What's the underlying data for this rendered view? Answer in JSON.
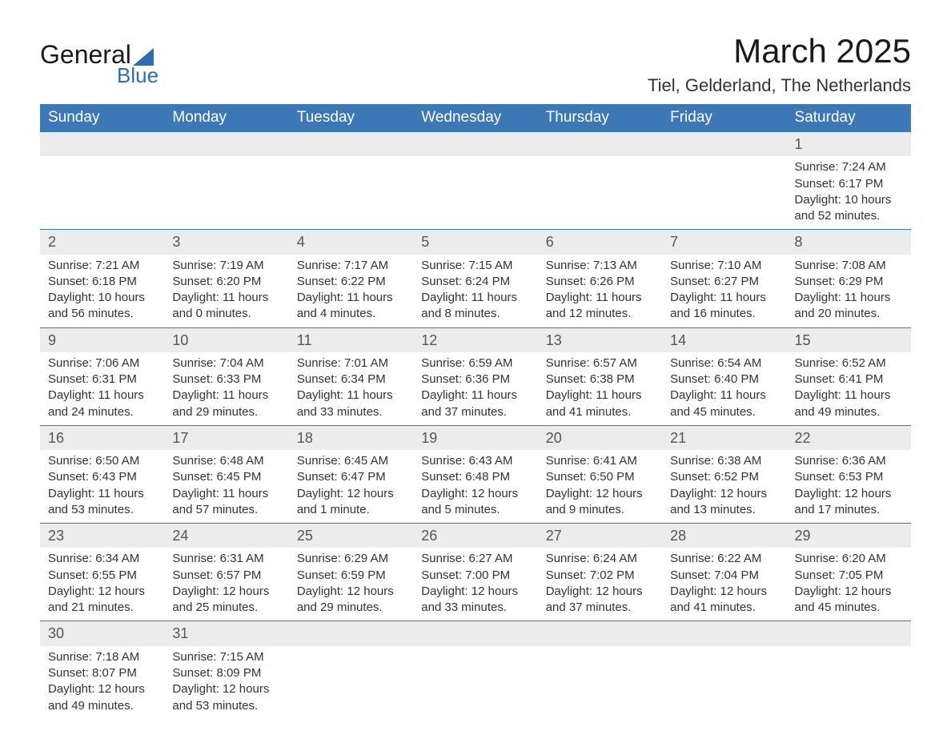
{
  "logo": {
    "main": "General",
    "sub": "Blue"
  },
  "title": "March 2025",
  "location": "Tiel, Gelderland, The Netherlands",
  "colors": {
    "header_bg": "#3b78b5",
    "header_text": "#ffffff",
    "daynum_bg": "#ececec",
    "row_border": "#3b78b5",
    "logo_accent": "#2d6db3"
  },
  "day_headers": [
    "Sunday",
    "Monday",
    "Tuesday",
    "Wednesday",
    "Thursday",
    "Friday",
    "Saturday"
  ],
  "weeks": [
    [
      null,
      null,
      null,
      null,
      null,
      null,
      {
        "n": "1",
        "sr": "Sunrise: 7:24 AM",
        "ss": "Sunset: 6:17 PM",
        "d1": "Daylight: 10 hours",
        "d2": "and 52 minutes."
      }
    ],
    [
      {
        "n": "2",
        "sr": "Sunrise: 7:21 AM",
        "ss": "Sunset: 6:18 PM",
        "d1": "Daylight: 10 hours",
        "d2": "and 56 minutes."
      },
      {
        "n": "3",
        "sr": "Sunrise: 7:19 AM",
        "ss": "Sunset: 6:20 PM",
        "d1": "Daylight: 11 hours",
        "d2": "and 0 minutes."
      },
      {
        "n": "4",
        "sr": "Sunrise: 7:17 AM",
        "ss": "Sunset: 6:22 PM",
        "d1": "Daylight: 11 hours",
        "d2": "and 4 minutes."
      },
      {
        "n": "5",
        "sr": "Sunrise: 7:15 AM",
        "ss": "Sunset: 6:24 PM",
        "d1": "Daylight: 11 hours",
        "d2": "and 8 minutes."
      },
      {
        "n": "6",
        "sr": "Sunrise: 7:13 AM",
        "ss": "Sunset: 6:26 PM",
        "d1": "Daylight: 11 hours",
        "d2": "and 12 minutes."
      },
      {
        "n": "7",
        "sr": "Sunrise: 7:10 AM",
        "ss": "Sunset: 6:27 PM",
        "d1": "Daylight: 11 hours",
        "d2": "and 16 minutes."
      },
      {
        "n": "8",
        "sr": "Sunrise: 7:08 AM",
        "ss": "Sunset: 6:29 PM",
        "d1": "Daylight: 11 hours",
        "d2": "and 20 minutes."
      }
    ],
    [
      {
        "n": "9",
        "sr": "Sunrise: 7:06 AM",
        "ss": "Sunset: 6:31 PM",
        "d1": "Daylight: 11 hours",
        "d2": "and 24 minutes."
      },
      {
        "n": "10",
        "sr": "Sunrise: 7:04 AM",
        "ss": "Sunset: 6:33 PM",
        "d1": "Daylight: 11 hours",
        "d2": "and 29 minutes."
      },
      {
        "n": "11",
        "sr": "Sunrise: 7:01 AM",
        "ss": "Sunset: 6:34 PM",
        "d1": "Daylight: 11 hours",
        "d2": "and 33 minutes."
      },
      {
        "n": "12",
        "sr": "Sunrise: 6:59 AM",
        "ss": "Sunset: 6:36 PM",
        "d1": "Daylight: 11 hours",
        "d2": "and 37 minutes."
      },
      {
        "n": "13",
        "sr": "Sunrise: 6:57 AM",
        "ss": "Sunset: 6:38 PM",
        "d1": "Daylight: 11 hours",
        "d2": "and 41 minutes."
      },
      {
        "n": "14",
        "sr": "Sunrise: 6:54 AM",
        "ss": "Sunset: 6:40 PM",
        "d1": "Daylight: 11 hours",
        "d2": "and 45 minutes."
      },
      {
        "n": "15",
        "sr": "Sunrise: 6:52 AM",
        "ss": "Sunset: 6:41 PM",
        "d1": "Daylight: 11 hours",
        "d2": "and 49 minutes."
      }
    ],
    [
      {
        "n": "16",
        "sr": "Sunrise: 6:50 AM",
        "ss": "Sunset: 6:43 PM",
        "d1": "Daylight: 11 hours",
        "d2": "and 53 minutes."
      },
      {
        "n": "17",
        "sr": "Sunrise: 6:48 AM",
        "ss": "Sunset: 6:45 PM",
        "d1": "Daylight: 11 hours",
        "d2": "and 57 minutes."
      },
      {
        "n": "18",
        "sr": "Sunrise: 6:45 AM",
        "ss": "Sunset: 6:47 PM",
        "d1": "Daylight: 12 hours",
        "d2": "and 1 minute."
      },
      {
        "n": "19",
        "sr": "Sunrise: 6:43 AM",
        "ss": "Sunset: 6:48 PM",
        "d1": "Daylight: 12 hours",
        "d2": "and 5 minutes."
      },
      {
        "n": "20",
        "sr": "Sunrise: 6:41 AM",
        "ss": "Sunset: 6:50 PM",
        "d1": "Daylight: 12 hours",
        "d2": "and 9 minutes."
      },
      {
        "n": "21",
        "sr": "Sunrise: 6:38 AM",
        "ss": "Sunset: 6:52 PM",
        "d1": "Daylight: 12 hours",
        "d2": "and 13 minutes."
      },
      {
        "n": "22",
        "sr": "Sunrise: 6:36 AM",
        "ss": "Sunset: 6:53 PM",
        "d1": "Daylight: 12 hours",
        "d2": "and 17 minutes."
      }
    ],
    [
      {
        "n": "23",
        "sr": "Sunrise: 6:34 AM",
        "ss": "Sunset: 6:55 PM",
        "d1": "Daylight: 12 hours",
        "d2": "and 21 minutes."
      },
      {
        "n": "24",
        "sr": "Sunrise: 6:31 AM",
        "ss": "Sunset: 6:57 PM",
        "d1": "Daylight: 12 hours",
        "d2": "and 25 minutes."
      },
      {
        "n": "25",
        "sr": "Sunrise: 6:29 AM",
        "ss": "Sunset: 6:59 PM",
        "d1": "Daylight: 12 hours",
        "d2": "and 29 minutes."
      },
      {
        "n": "26",
        "sr": "Sunrise: 6:27 AM",
        "ss": "Sunset: 7:00 PM",
        "d1": "Daylight: 12 hours",
        "d2": "and 33 minutes."
      },
      {
        "n": "27",
        "sr": "Sunrise: 6:24 AM",
        "ss": "Sunset: 7:02 PM",
        "d1": "Daylight: 12 hours",
        "d2": "and 37 minutes."
      },
      {
        "n": "28",
        "sr": "Sunrise: 6:22 AM",
        "ss": "Sunset: 7:04 PM",
        "d1": "Daylight: 12 hours",
        "d2": "and 41 minutes."
      },
      {
        "n": "29",
        "sr": "Sunrise: 6:20 AM",
        "ss": "Sunset: 7:05 PM",
        "d1": "Daylight: 12 hours",
        "d2": "and 45 minutes."
      }
    ],
    [
      {
        "n": "30",
        "sr": "Sunrise: 7:18 AM",
        "ss": "Sunset: 8:07 PM",
        "d1": "Daylight: 12 hours",
        "d2": "and 49 minutes."
      },
      {
        "n": "31",
        "sr": "Sunrise: 7:15 AM",
        "ss": "Sunset: 8:09 PM",
        "d1": "Daylight: 12 hours",
        "d2": "and 53 minutes."
      },
      null,
      null,
      null,
      null,
      null
    ]
  ]
}
